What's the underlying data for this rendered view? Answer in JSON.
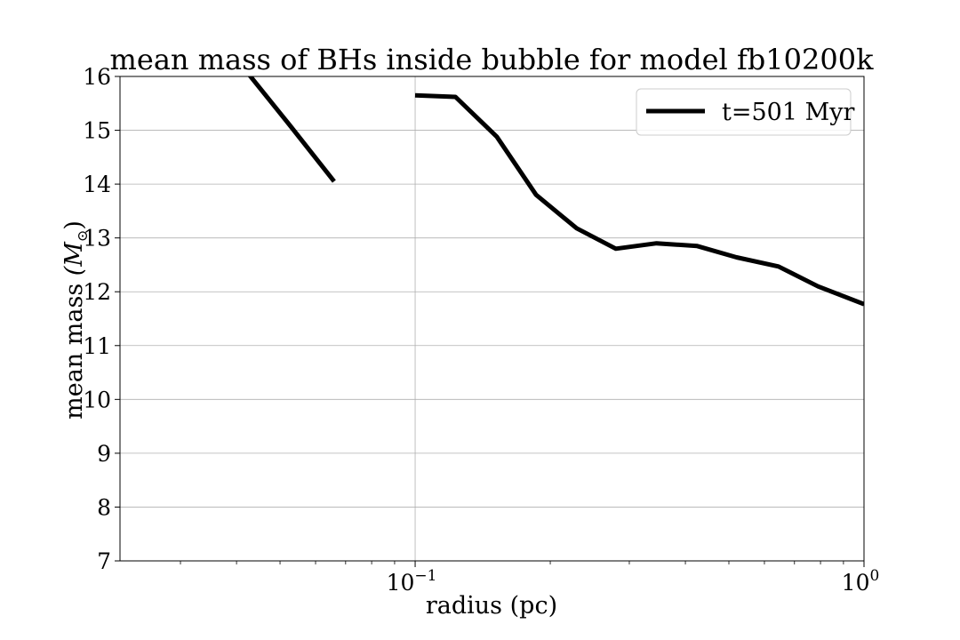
{
  "chart_data": {
    "type": "line",
    "title": "mean mass of BHs inside bubble for model fb10200k",
    "xlabel": "radius (pc)",
    "ylabel": "mean mass",
    "ylabel_unit": "(M",
    "ylabel_unit_sub": "⊙",
    "ylabel_unit_close": ")",
    "x_scale": "log",
    "xlim": [
      0.022,
      1.0
    ],
    "ylim": [
      7,
      16
    ],
    "x_ticks": [
      {
        "value": 0.1,
        "base": "10",
        "exp": "−1"
      },
      {
        "value": 1.0,
        "base": "10",
        "exp": "0"
      }
    ],
    "y_ticks": [
      "7",
      "8",
      "9",
      "10",
      "11",
      "12",
      "13",
      "14",
      "15",
      "16"
    ],
    "grid": true,
    "legend_position": "top-right",
    "series": [
      {
        "name": "t=501 Myr",
        "color": "#000000",
        "segments": [
          [
            [
              0.0425,
              16.05
            ],
            [
              0.0525,
              15.1
            ],
            [
              0.066,
              14.05
            ]
          ],
          [
            [
              0.1,
              15.65
            ],
            [
              0.123,
              15.62
            ],
            [
              0.152,
              14.88
            ],
            [
              0.186,
              13.8
            ],
            [
              0.229,
              13.18
            ],
            [
              0.28,
              12.8
            ],
            [
              0.345,
              12.9
            ],
            [
              0.425,
              12.85
            ],
            [
              0.52,
              12.64
            ],
            [
              0.645,
              12.47
            ],
            [
              0.79,
              12.1
            ],
            [
              1.0,
              11.77
            ]
          ]
        ]
      }
    ]
  }
}
